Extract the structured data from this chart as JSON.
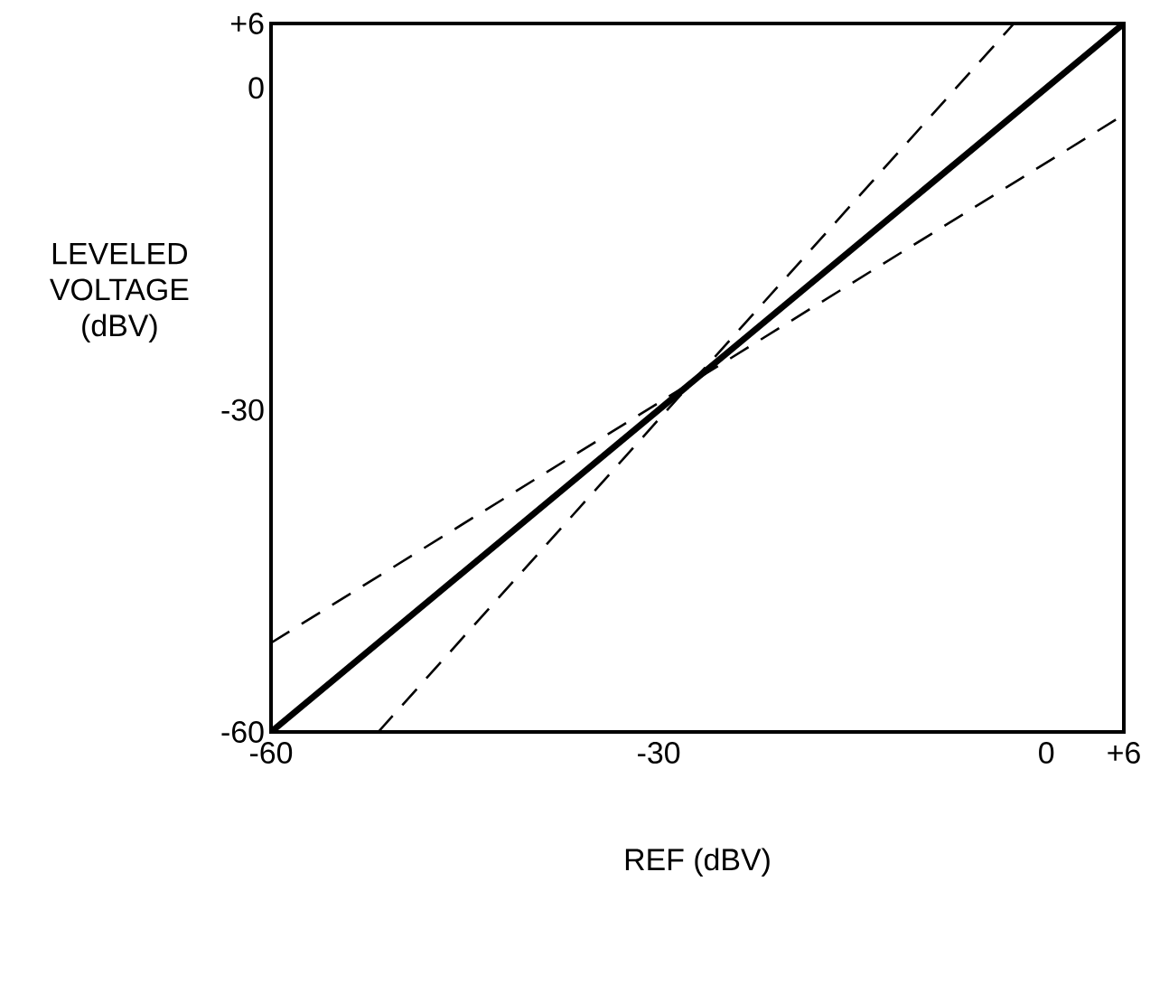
{
  "chart_data": {
    "type": "line",
    "xlabel": "REF (dBV)",
    "ylabel": "LEVELED VOLTAGE (dBV)",
    "xlim": [
      -60,
      6
    ],
    "ylim": [
      -60,
      6
    ],
    "xticks": [
      -60,
      -30,
      0,
      {
        "value": 6,
        "label": "+6"
      }
    ],
    "yticks": [
      -60,
      -30,
      0,
      {
        "value": 6,
        "label": "+6"
      }
    ],
    "grid": false,
    "series": [
      {
        "color": "#000000",
        "x": [
          -60,
          6
        ],
        "values": [
          -60,
          6
        ]
      },
      {
        "color": "#000000",
        "line_style": "dashed",
        "x": [
          -51.7,
          -2.5
        ],
        "values": [
          -60,
          6
        ]
      },
      {
        "color": "#000000",
        "line_style": "dashed",
        "x": [
          -60,
          6
        ],
        "values": [
          -51.7,
          -2.5
        ]
      }
    ]
  }
}
